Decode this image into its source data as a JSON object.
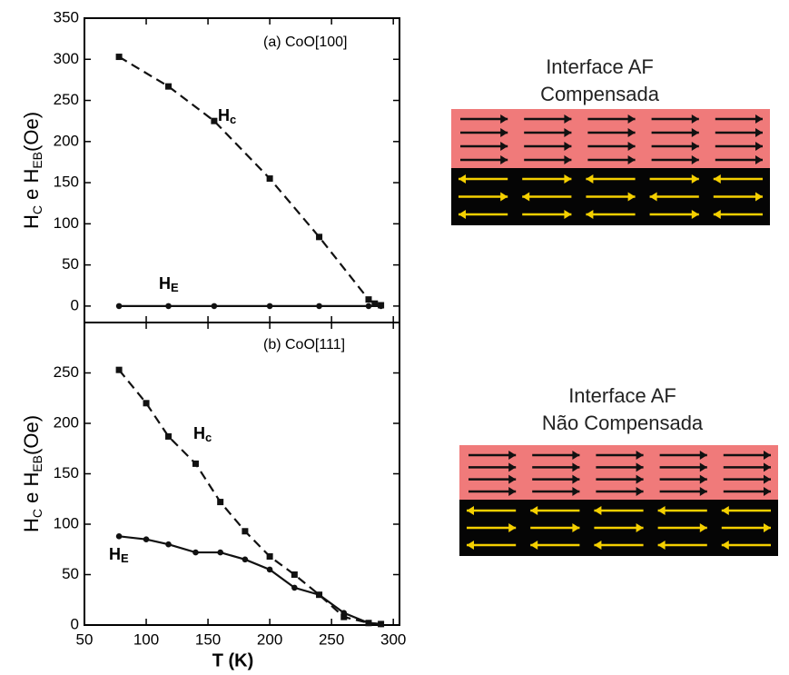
{
  "chart_data": [
    {
      "type": "line",
      "title": "(a) CoO[100]",
      "ylabel": [
        "H",
        "C",
        " e H",
        "EB",
        "(Oe)"
      ],
      "xlim": [
        50,
        305
      ],
      "xticks": [
        50,
        100,
        150,
        200,
        250,
        300
      ],
      "ylim": [
        -20,
        350
      ],
      "yticks": [
        0,
        50,
        100,
        150,
        200,
        250,
        300,
        350
      ],
      "annotations": [
        [
          "H",
          "c"
        ],
        [
          "H",
          "E"
        ]
      ],
      "series": [
        {
          "color": "#111111",
          "dashed": true,
          "marker": "square",
          "x": [
            78,
            118,
            155,
            200,
            240,
            280,
            285,
            290
          ],
          "values": [
            303,
            267,
            225,
            155,
            84,
            8,
            3,
            1
          ]
        },
        {
          "color": "#111111",
          "dashed": false,
          "marker": "circle",
          "x": [
            78,
            118,
            155,
            200,
            240,
            280,
            290
          ],
          "values": [
            0,
            0,
            0,
            0,
            0,
            0,
            0
          ]
        }
      ]
    },
    {
      "type": "line",
      "title": "(b) CoO[111]",
      "ylabel": [
        "H",
        "C",
        " e H",
        "EB",
        "(Oe)"
      ],
      "xlabel": "T (K)",
      "xlim": [
        50,
        305
      ],
      "xticks": [
        50,
        100,
        150,
        200,
        250,
        300
      ],
      "ylim": [
        0,
        300
      ],
      "yticks": [
        0,
        50,
        100,
        150,
        200,
        250
      ],
      "annotations": [
        [
          "H",
          "c"
        ],
        [
          "H",
          "E"
        ]
      ],
      "series": [
        {
          "color": "#111111",
          "dashed": true,
          "marker": "square",
          "x": [
            78,
            100,
            118,
            140,
            160,
            180,
            200,
            220,
            240,
            260,
            280,
            290
          ],
          "values": [
            253,
            220,
            187,
            160,
            122,
            93,
            68,
            50,
            30,
            8,
            2,
            1
          ]
        },
        {
          "color": "#111111",
          "dashed": false,
          "marker": "circle",
          "x": [
            78,
            100,
            118,
            140,
            160,
            180,
            200,
            220,
            240,
            260,
            280,
            290
          ],
          "values": [
            88,
            85,
            80,
            72,
            72,
            65,
            55,
            37,
            30,
            12,
            2,
            1
          ]
        }
      ]
    }
  ],
  "diagrams": [
    {
      "title": [
        "Interface AF",
        "Compensada"
      ]
    },
    {
      "title": [
        "Interface AF",
        "Não Compensada"
      ]
    }
  ]
}
